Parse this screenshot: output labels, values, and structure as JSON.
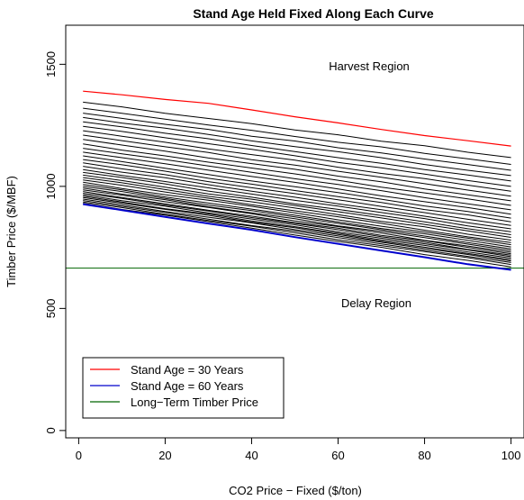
{
  "chart_data": {
    "type": "line",
    "title": "Stand Age Held Fixed Along Each Curve",
    "xlabel": "CO2 Price − Fixed ($/ton)",
    "ylabel": "Timber Price ($/MBF)",
    "xlim": [
      -3,
      103
    ],
    "ylim": [
      -30,
      1660
    ],
    "xticks": [
      0,
      20,
      40,
      60,
      80,
      100
    ],
    "yticks": [
      0,
      500,
      1000,
      1500
    ],
    "grid": false,
    "legend_position": "bottom-left",
    "annotations": [
      "Harvest Region",
      "Delay Region"
    ],
    "legend": [
      {
        "label": "Stand Age = 30 Years",
        "color": "#ff0000"
      },
      {
        "label": "Stand Age = 60 Years",
        "color": "#0000cc"
      },
      {
        "label": "Long−Term Timber Price",
        "color": "#006400"
      }
    ],
    "x": [
      1,
      10,
      20,
      30,
      40,
      50,
      60,
      70,
      80,
      90,
      100
    ],
    "curve_start_values": [
      1390,
      1345,
      1320,
      1300,
      1282,
      1264,
      1246,
      1228,
      1210,
      1192,
      1174,
      1156,
      1140,
      1125,
      1110,
      1096,
      1082,
      1069,
      1057,
      1046,
      1036,
      1026,
      1017,
      1008,
      1000,
      993,
      986,
      979,
      972,
      966,
      960,
      954,
      948,
      942,
      936,
      931,
      927
    ],
    "curve_end_values": [
      1165,
      1118,
      1090,
      1066,
      1044,
      1022,
      1000,
      980,
      960,
      941,
      922,
      904,
      886,
      870,
      855,
      840,
      826,
      814,
      802,
      791,
      780,
      770,
      761,
      752,
      744,
      737,
      730,
      724,
      718,
      712,
      706,
      700,
      694,
      688,
      680,
      670,
      658
    ],
    "series": [
      {
        "name": "Stand Age = 30 Years",
        "color": "#ff0000",
        "values": [
          1390,
          1375,
          1356,
          1340,
          1313,
          1285,
          1260,
          1233,
          1208,
          1187,
          1165
        ]
      },
      {
        "name": "Stand Age = 60 Years",
        "color": "#0000cc",
        "values": [
          927,
          903,
          875,
          848,
          822,
          792,
          765,
          737,
          710,
          681,
          658
        ]
      },
      {
        "name": "Long−Term Timber Price",
        "color": "#006400",
        "values": [
          665,
          665,
          665,
          665,
          665,
          665,
          665,
          665,
          665,
          665,
          665
        ]
      }
    ]
  }
}
